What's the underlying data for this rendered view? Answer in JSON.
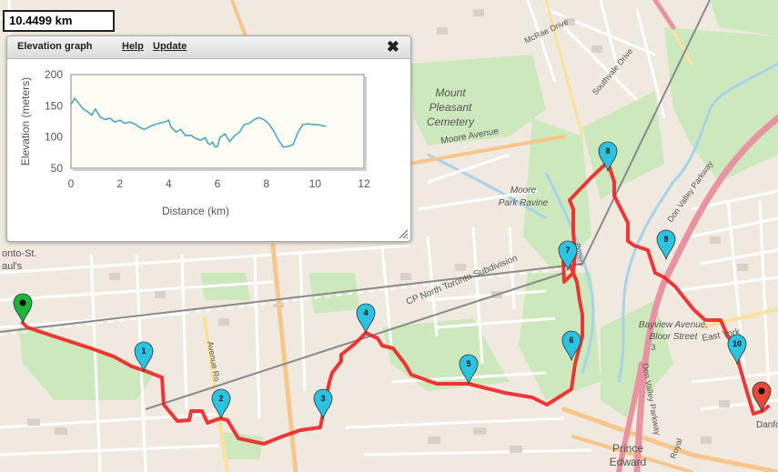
{
  "distance_readout": "10.4499 km",
  "panel": {
    "title": "Elevation graph",
    "help_label": "Help",
    "update_label": "Update"
  },
  "chart_data": {
    "type": "line",
    "xlabel": "Distance (km)",
    "ylabel": "Elevation (meters)",
    "xlim": [
      0,
      12
    ],
    "ylim": [
      50,
      200
    ],
    "xticks": [
      0,
      2,
      4,
      6,
      8,
      10,
      12
    ],
    "yticks": [
      50,
      100,
      150,
      200
    ],
    "series": [
      {
        "color": "#4aa8c0",
        "x": [
          0,
          0.15,
          0.3,
          0.5,
          0.7,
          0.85,
          1.0,
          1.2,
          1.4,
          1.6,
          1.8,
          2.0,
          2.2,
          2.4,
          2.6,
          2.8,
          3.0,
          3.3,
          3.6,
          3.9,
          4.0,
          4.1,
          4.3,
          4.5,
          4.7,
          4.9,
          5.1,
          5.3,
          5.5,
          5.6,
          5.7,
          5.8,
          5.9,
          6.0,
          6.1,
          6.3,
          6.5,
          6.7,
          6.9,
          7.1,
          7.3,
          7.5,
          7.7,
          7.9,
          8.1,
          8.3,
          8.5,
          8.7,
          8.9,
          9.1,
          9.3,
          9.5,
          9.7,
          9.9,
          10.1,
          10.3,
          10.45
        ],
        "y": [
          152,
          162,
          155,
          145,
          140,
          135,
          145,
          132,
          128,
          130,
          124,
          127,
          122,
          124,
          121,
          116,
          112,
          118,
          122,
          125,
          127,
          116,
          108,
          112,
          102,
          103,
          98,
          95,
          99,
          90,
          88,
          92,
          84,
          85,
          99,
          105,
          93,
          102,
          108,
          120,
          122,
          128,
          131,
          128,
          121,
          110,
          95,
          84,
          85,
          88,
          108,
          120,
          121,
          120,
          120,
          118,
          117
        ]
      }
    ]
  },
  "map": {
    "labels": {
      "cemetery_line1": "Mount",
      "cemetery_line2": "Pleasant",
      "cemetery_line3": "Cemetery",
      "moore_avenue": "Moore Avenue",
      "mcrae_drive": "McRae Drive",
      "southvale_drive": "Southvale Drive",
      "moore_park_line1": "Moore",
      "moore_park_line2": "Park Ravine",
      "cp_north": "CP North Toronto Subdivision",
      "dvp_top": "Don Valley Parkway",
      "dvp_bottom": "Don Valley Parkway",
      "bayview_line1": "Bayview Avenue,",
      "bayview_line2": "Bloor Street",
      "bayview_line3": "3",
      "east_york": "East York",
      "prince_line1": "Prince",
      "prince_line2": "Edward",
      "danforth": "Danfo",
      "royal": "Royal",
      "avenue_rd": "Avenue Ro",
      "toronto_st_line1": "onto-St.",
      "toronto_st_line2": "aul's",
      "pottery": "Pottery"
    },
    "markers": [
      "1",
      "2",
      "3",
      "4",
      "5",
      "6",
      "7",
      "8",
      "9",
      "10"
    ]
  },
  "colors": {
    "route": "#ee2222",
    "waypoint_marker": "#2cc3e0",
    "start_marker": "#1db43a",
    "end_marker": "#e34a3a",
    "park": "#c8e6b8",
    "major_road": "#f7c68a",
    "motorway": "#e892a2",
    "water": "#a9d3e6",
    "elevation_line": "#4aa8c0",
    "chart_bg": "#fffdf3"
  }
}
